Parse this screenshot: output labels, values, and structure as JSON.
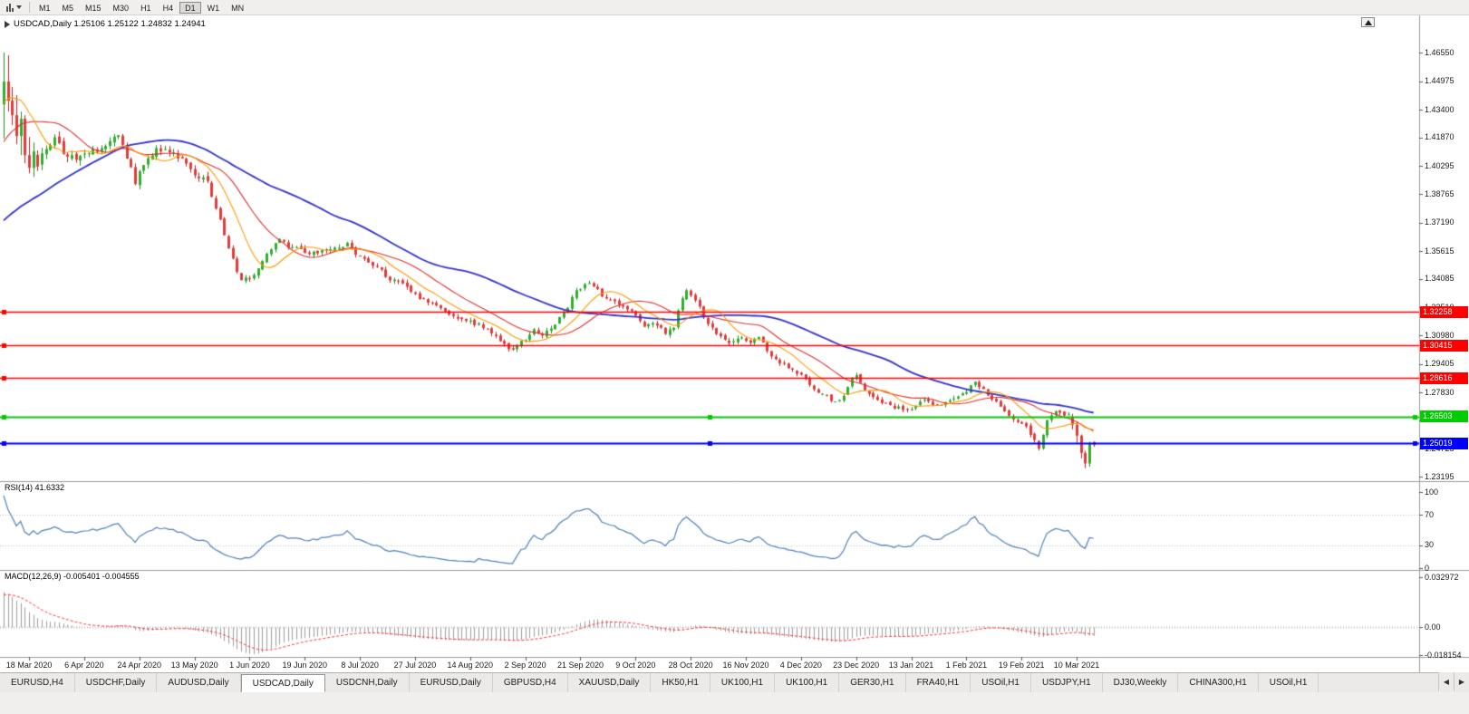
{
  "toolbar": {
    "chart_dropdown_icon": "candlestick-chart-icon",
    "timeframes": [
      "M1",
      "M5",
      "M15",
      "M30",
      "H1",
      "H4",
      "D1",
      "W1",
      "MN"
    ],
    "active_timeframe": "D1"
  },
  "chart_header": {
    "text": "USDCAD,Daily 1.25106 1.25122 1.24832 1.24941"
  },
  "tabs": {
    "active_index": 3,
    "items": [
      "EURUSD,H4",
      "USDCHF,Daily",
      "AUDUSD,Daily",
      "USDCAD,Daily",
      "USDCNH,Daily",
      "EURUSD,Daily",
      "GBPUSD,H4",
      "XAUUSD,Daily",
      "HK50,H1",
      "UK100,H1",
      "UK100,H1",
      "GER30,H1",
      "FRA40,H1",
      "USOil,H1",
      "USDJPY,H1",
      "DJ30,Weekly",
      "CHINA300,H1",
      "USOil,H1"
    ],
    "scroll_left_icon": "◀",
    "scroll_right_icon": "▶"
  },
  "colors": {
    "background": "#ffffff",
    "up": "#2fae2f",
    "up_wick": "#1e8e1e",
    "down": "#e23b3b",
    "down_wick": "#c02020",
    "axis_text": "#1a1a1a",
    "panel_border": "#9a9a9a",
    "grid_dotted": "#c0c0c0"
  },
  "chart_data": {
    "type": "candlestick",
    "symbol": "USDCAD",
    "timeframe": "Daily",
    "last_candle": {
      "open": 1.25106,
      "high": 1.25122,
      "low": 1.24832,
      "close": 1.24941
    },
    "bar_count": 258,
    "price_axis": {
      "top_value": 1.4655,
      "bottom_value": 1.23195,
      "labels": [
        "1.46550",
        "1.44975",
        "1.43400",
        "1.41870",
        "1.40295",
        "1.38765",
        "1.37190",
        "1.35615",
        "1.34085",
        "1.32510",
        "1.30980",
        "1.29405",
        "1.27830",
        "1.26300",
        "1.24725",
        "1.23195"
      ]
    },
    "date_axis": {
      "labels": [
        "18 Mar 2020",
        "6 Apr 2020",
        "24 Apr 2020",
        "13 May 2020",
        "1 Jun 2020",
        "19 Jun 2020",
        "8 Jul 2020",
        "27 Jul 2020",
        "14 Aug 2020",
        "2 Sep 2020",
        "21 Sep 2020",
        "9 Oct 2020",
        "28 Oct 2020",
        "16 Nov 2020",
        "4 Dec 2020",
        "23 Dec 2020",
        "13 Jan 2021",
        "1 Feb 2021",
        "19 Feb 2021",
        "10 Mar 2021"
      ],
      "first_bar_index": 6,
      "bar_step": 13
    },
    "hlines": [
      {
        "value": 1.32258,
        "label": "1.32258",
        "color": "#ff0000",
        "width": 1.4,
        "selected": false
      },
      {
        "value": 1.30415,
        "label": "1.30415",
        "color": "#ff0000",
        "width": 1.4,
        "selected": false
      },
      {
        "value": 1.28616,
        "label": "1.28616",
        "color": "#ff0000",
        "width": 1.4,
        "selected": false
      },
      {
        "value": 1.26503,
        "label": "1.26503",
        "color": "#00cc00",
        "width": 2.2,
        "selected": true
      },
      {
        "value": 1.25019,
        "label": "1.25019",
        "color": "#0000ff",
        "width": 2.2,
        "selected": true
      }
    ],
    "moving_averages": [
      {
        "period": 50,
        "color": "#3333cc",
        "width": 1.8
      },
      {
        "period": 20,
        "color": "#e03030",
        "width": 1.1
      },
      {
        "period": 10,
        "color": "#ff9900",
        "width": 1.1
      }
    ],
    "warmup": {
      "bars": 60,
      "anchors": [
        [
          0,
          1.326
        ],
        [
          15,
          1.334
        ],
        [
          28,
          1.341
        ],
        [
          38,
          1.362
        ],
        [
          46,
          1.396
        ],
        [
          52,
          1.424
        ],
        [
          56,
          1.442
        ],
        [
          59,
          1.451
        ]
      ]
    },
    "anchors": [
      [
        8,
        1.4035
      ],
      [
        10,
        1.4125
      ],
      [
        12,
        1.419
      ],
      [
        14,
        1.4115
      ],
      [
        17,
        1.406
      ],
      [
        20,
        1.4105
      ],
      [
        22,
        1.4125
      ],
      [
        25,
        1.417
      ],
      [
        27,
        1.421
      ],
      [
        29,
        1.408
      ],
      [
        31,
        1.3945
      ],
      [
        33,
        1.403
      ],
      [
        36,
        1.4135
      ],
      [
        39,
        1.4105
      ],
      [
        41,
        1.408
      ],
      [
        44,
        1.4015
      ],
      [
        46,
        1.397
      ],
      [
        48,
        1.3935
      ],
      [
        50,
        1.38
      ],
      [
        53,
        1.358
      ],
      [
        56,
        1.3395
      ],
      [
        58,
        1.3415
      ],
      [
        60,
        1.347
      ],
      [
        63,
        1.3565
      ],
      [
        65,
        1.3635
      ],
      [
        67,
        1.359
      ],
      [
        69,
        1.358
      ],
      [
        72,
        1.3545
      ],
      [
        75,
        1.3555
      ],
      [
        78,
        1.358
      ],
      [
        81,
        1.3595
      ],
      [
        84,
        1.3525
      ],
      [
        86,
        1.3505
      ],
      [
        88,
        1.3475
      ],
      [
        91,
        1.3405
      ],
      [
        94,
        1.3385
      ],
      [
        96,
        1.334
      ],
      [
        99,
        1.329
      ],
      [
        101,
        1.3265
      ],
      [
        104,
        1.3225
      ],
      [
        106,
        1.321
      ],
      [
        109,
        1.318
      ],
      [
        111,
        1.3165
      ],
      [
        113,
        1.314
      ],
      [
        116,
        1.309
      ],
      [
        118,
        1.304
      ],
      [
        120,
        1.3015
      ],
      [
        122,
        1.306
      ],
      [
        125,
        1.312
      ],
      [
        127,
        1.3105
      ],
      [
        130,
        1.3165
      ],
      [
        132,
        1.3215
      ],
      [
        135,
        1.334
      ],
      [
        137,
        1.3385
      ],
      [
        138,
        1.3395
      ],
      [
        140,
        1.335
      ],
      [
        141,
        1.331
      ],
      [
        143,
        1.329
      ],
      [
        146,
        1.325
      ],
      [
        148,
        1.322
      ],
      [
        151,
        1.3145
      ],
      [
        153,
        1.316
      ],
      [
        156,
        1.3115
      ],
      [
        158,
        1.315
      ],
      [
        160,
        1.331
      ],
      [
        161,
        1.334
      ],
      [
        162,
        1.3325
      ],
      [
        164,
        1.325
      ],
      [
        166,
        1.316
      ],
      [
        168,
        1.311
      ],
      [
        171,
        1.306
      ],
      [
        173,
        1.3085
      ],
      [
        176,
        1.3065
      ],
      [
        178,
        1.309
      ],
      [
        181,
        1.2985
      ],
      [
        183,
        1.295
      ],
      [
        186,
        1.291
      ],
      [
        188,
        1.288
      ],
      [
        191,
        1.2805
      ],
      [
        193,
        1.277
      ],
      [
        196,
        1.2735
      ],
      [
        198,
        1.276
      ],
      [
        200,
        1.2855
      ],
      [
        201,
        1.287
      ],
      [
        203,
        1.28
      ],
      [
        205,
        1.276
      ],
      [
        207,
        1.2725
      ],
      [
        209,
        1.2705
      ],
      [
        212,
        1.269
      ],
      [
        214,
        1.27
      ],
      [
        217,
        1.2735
      ],
      [
        219,
        1.272
      ],
      [
        222,
        1.2725
      ],
      [
        224,
        1.276
      ],
      [
        227,
        1.279
      ],
      [
        229,
        1.2835
      ],
      [
        232,
        1.277
      ],
      [
        234,
        1.2725
      ],
      [
        236,
        1.268
      ],
      [
        239,
        1.262
      ],
      [
        241,
        1.2585
      ],
      [
        243,
        1.2525
      ],
      [
        244,
        1.2475
      ],
      [
        245,
        1.2555
      ],
      [
        246,
        1.2635
      ],
      [
        248,
        1.2685
      ],
      [
        250,
        1.266
      ],
      [
        252,
        1.2648
      ]
    ],
    "explicit_head": [
      [
        1.437,
        1.4655,
        1.418,
        1.4495
      ],
      [
        1.4495,
        1.464,
        1.433,
        1.439
      ],
      [
        1.439,
        1.4465,
        1.4255,
        1.431
      ],
      [
        1.431,
        1.442,
        1.415,
        1.4195
      ],
      [
        1.4195,
        1.433,
        1.409,
        1.429
      ],
      [
        1.429,
        1.431,
        1.4045,
        1.409
      ],
      [
        1.409,
        1.419,
        1.399,
        1.402
      ],
      [
        1.402,
        1.416,
        1.397,
        1.411
      ]
    ],
    "explicit_tail_start": 252,
    "explicit_tail": [
      [
        1.2648,
        1.2665,
        1.258,
        1.2605
      ],
      [
        1.2605,
        1.2618,
        1.2505,
        1.2545
      ],
      [
        1.2545,
        1.2552,
        1.242,
        1.245
      ],
      [
        1.245,
        1.2462,
        1.2366,
        1.2392
      ],
      [
        1.2392,
        1.2512,
        1.2374,
        1.2502
      ],
      [
        1.25106,
        1.25122,
        1.24832,
        1.24941
      ]
    ],
    "rsi": {
      "label": "RSI(14) 41.6332",
      "period": 14,
      "current": 41.6332,
      "axis_labels": [
        "100",
        "70",
        "30",
        "0"
      ],
      "levels": [
        70,
        30
      ],
      "color": "#4f81bd"
    },
    "macd": {
      "label": "MACD(12,26,9) -0.005401 -0.004555",
      "fast": 12,
      "slow": 26,
      "signal": 9,
      "current_macd": -0.005401,
      "current_signal": -0.004555,
      "axis_labels": [
        "0.032972",
        "0.00",
        "-0.018154"
      ],
      "axis_values": [
        0.032972,
        0,
        -0.018154
      ],
      "scale_max": 0.032972,
      "scale_min": -0.018154,
      "histogram_color": "#9e9e9e",
      "signal_color": "#ff3333"
    }
  }
}
